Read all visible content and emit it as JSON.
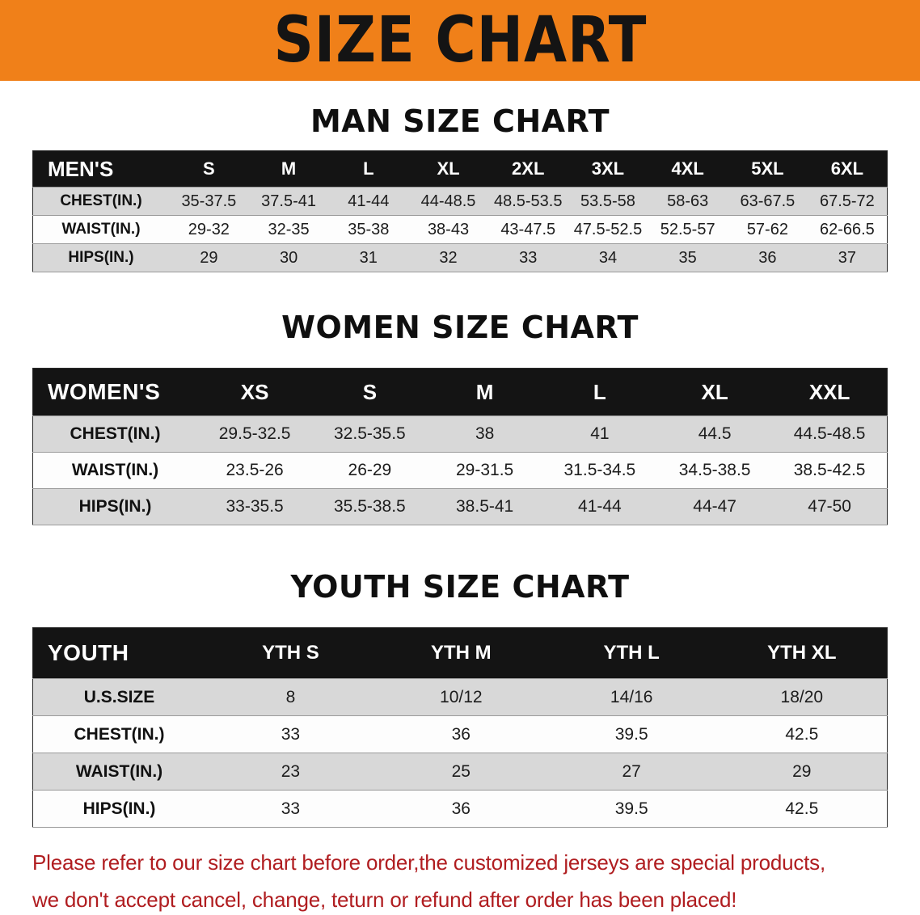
{
  "banner": {
    "title": "SIZE CHART",
    "bg_color": "#F08019"
  },
  "colors": {
    "table_header_bg": "#141414",
    "stripe_gray": "#D8D8D8",
    "footer_red": "#B01D20"
  },
  "sections": [
    {
      "heading": "MAN SIZE CHART",
      "table": {
        "header": [
          "MEN'S",
          "S",
          "M",
          "L",
          "XL",
          "2XL",
          "3XL",
          "4XL",
          "5XL",
          "6XL"
        ],
        "rows": [
          {
            "label": "CHEST(IN.)",
            "values": [
              "35-37.5",
              "37.5-41",
              "41-44",
              "44-48.5",
              "48.5-53.5",
              "53.5-58",
              "58-63",
              "63-67.5",
              "67.5-72"
            ]
          },
          {
            "label": "WAIST(IN.)",
            "values": [
              "29-32",
              "32-35",
              "35-38",
              "38-43",
              "43-47.5",
              "47.5-52.5",
              "52.5-57",
              "57-62",
              "62-66.5"
            ]
          },
          {
            "label": "HIPS(IN.)",
            "values": [
              "29",
              "30",
              "31",
              "32",
              "33",
              "34",
              "35",
              "36",
              "37"
            ]
          }
        ]
      }
    },
    {
      "heading": "WOMEN SIZE CHART",
      "table": {
        "header": [
          "WOMEN'S",
          "XS",
          "S",
          "M",
          "L",
          "XL",
          "XXL"
        ],
        "rows": [
          {
            "label": "CHEST(IN.)",
            "values": [
              "29.5-32.5",
              "32.5-35.5",
              "38",
              "41",
              "44.5",
              "44.5-48.5"
            ]
          },
          {
            "label": "WAIST(IN.)",
            "values": [
              "23.5-26",
              "26-29",
              "29-31.5",
              "31.5-34.5",
              "34.5-38.5",
              "38.5-42.5"
            ]
          },
          {
            "label": "HIPS(IN.)",
            "values": [
              "33-35.5",
              "35.5-38.5",
              "38.5-41",
              "41-44",
              "44-47",
              "47-50"
            ]
          }
        ]
      }
    },
    {
      "heading": "YOUTH SIZE CHART",
      "table": {
        "header": [
          "YOUTH",
          "YTH S",
          "YTH M",
          "YTH L",
          "YTH XL"
        ],
        "rows": [
          {
            "label": "U.S.SIZE",
            "values": [
              "8",
              "10/12",
              "14/16",
              "18/20"
            ]
          },
          {
            "label": "CHEST(IN.)",
            "values": [
              "33",
              "36",
              "39.5",
              "42.5"
            ]
          },
          {
            "label": "WAIST(IN.)",
            "values": [
              "23",
              "25",
              "27",
              "29"
            ]
          },
          {
            "label": "HIPS(IN.)",
            "values": [
              "33",
              "36",
              "39.5",
              "42.5"
            ]
          }
        ]
      }
    }
  ],
  "footer": {
    "lines": [
      "Please refer to our size chart before order,the customized jerseys are special products,",
      "we don't accept cancel, change, teturn or refund after order has been placed!"
    ],
    "color": "#B01D20"
  }
}
